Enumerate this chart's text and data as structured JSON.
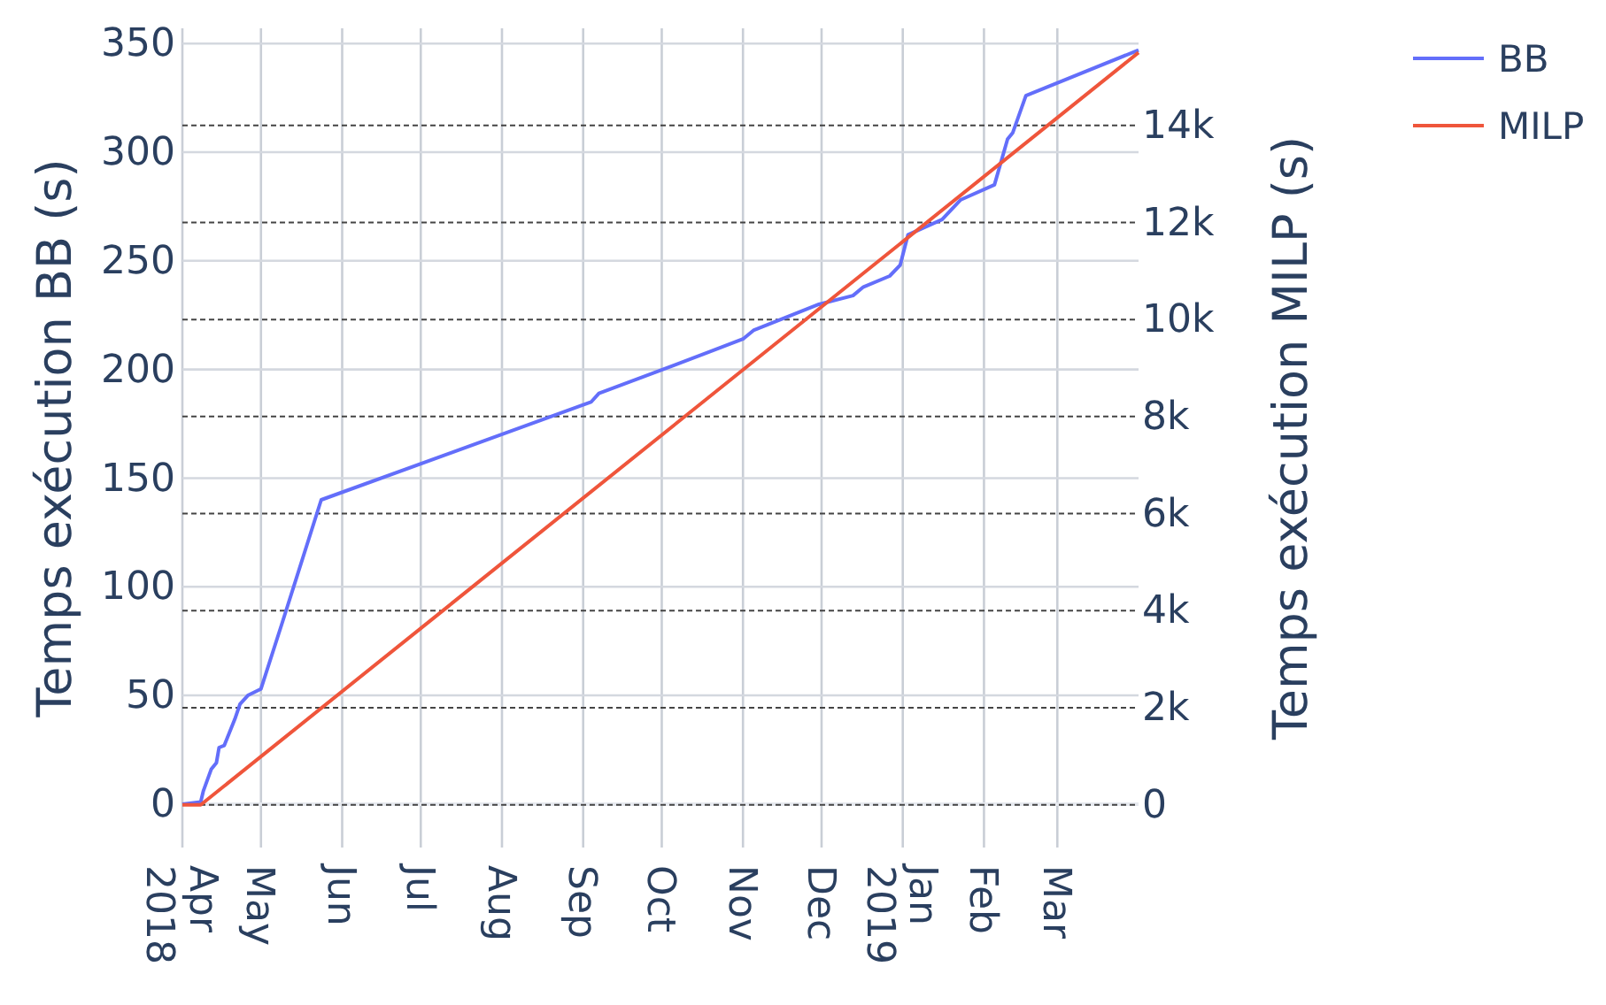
{
  "chart_data": {
    "type": "line",
    "x": [
      "2018-04-01",
      "2018-04-08",
      "2018-04-09",
      "2018-04-12",
      "2018-04-14",
      "2018-04-15",
      "2018-04-17",
      "2018-04-21",
      "2018-04-23",
      "2018-04-26",
      "2018-05-01",
      "2018-05-09",
      "2018-05-14",
      "2018-05-24",
      "2018-09-04",
      "2018-09-07",
      "2018-10-19",
      "2018-11-01",
      "2018-11-05",
      "2018-11-30",
      "2018-12-13",
      "2018-12-17",
      "2018-12-27",
      "2018-12-31",
      "2019-01-03",
      "2019-01-16",
      "2019-01-23",
      "2019-02-05",
      "2019-02-10",
      "2019-02-12",
      "2019-02-17",
      "2019-04-01"
    ],
    "series": [
      {
        "name": "BB",
        "color": "#636efa",
        "values": [
          0,
          1,
          6,
          16,
          19,
          26,
          27,
          39,
          46,
          50,
          53,
          83,
          102,
          140,
          185,
          189,
          208,
          214,
          218,
          230,
          234,
          238,
          243,
          248,
          262,
          269,
          278,
          285,
          306,
          309,
          326,
          347
        ]
      },
      {
        "name": "MILP",
        "color": "#ef553b",
        "axis": "y2",
        "x": [
          "2018-04-01",
          "2018-04-08",
          "2019-04-01"
        ],
        "values": [
          0,
          0,
          15500
        ]
      }
    ],
    "ylabel": "Temps exécution BB (s)",
    "y2label": "Temps exécution MILP (s)",
    "xlim": [
      "2018-04-01",
      "2019-04-01"
    ],
    "xticks": [
      {
        "value": "2018-04-01",
        "label": "Apr\n2018"
      },
      {
        "value": "2018-05-01",
        "label": "May"
      },
      {
        "value": "2018-06-01",
        "label": "Jun"
      },
      {
        "value": "2018-07-01",
        "label": "Jul"
      },
      {
        "value": "2018-08-01",
        "label": "Aug"
      },
      {
        "value": "2018-09-01",
        "label": "Sep"
      },
      {
        "value": "2018-10-01",
        "label": "Oct"
      },
      {
        "value": "2018-11-01",
        "label": "Nov"
      },
      {
        "value": "2018-12-01",
        "label": "Dec"
      },
      {
        "value": "2019-01-01",
        "label": "Jan\n2019"
      },
      {
        "value": "2019-02-01",
        "label": "Feb"
      },
      {
        "value": "2019-03-01",
        "label": "Mar"
      }
    ],
    "ylim": [
      -20,
      357
    ],
    "yticks": [
      0,
      50,
      100,
      150,
      200,
      250,
      300,
      350
    ],
    "y2lim": [
      -880,
      16000
    ],
    "y2ticks": [
      0,
      {
        "value": 2000,
        "label": "2k"
      },
      {
        "value": 4000,
        "label": "4k"
      },
      {
        "value": 6000,
        "label": "6k"
      },
      {
        "value": 8000,
        "label": "8k"
      },
      {
        "value": 10000,
        "label": "10k"
      },
      {
        "value": 12000,
        "label": "12k"
      },
      {
        "value": 14000,
        "label": "14k"
      }
    ],
    "grid": true,
    "legend": "top right",
    "line_style": "solid",
    "marker": "none"
  }
}
